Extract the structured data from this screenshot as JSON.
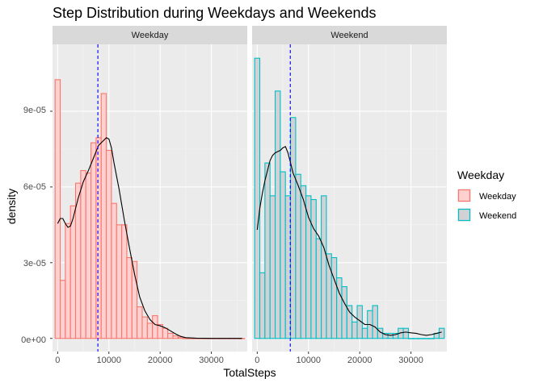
{
  "chart_data": {
    "type": "histogram",
    "title": "Step Distribution during Weekdays and Weekends",
    "xlabel": "TotalSteps",
    "ylabel": "density",
    "xlim": [
      -1000,
      37000
    ],
    "ylim": [
      -5.2e-06,
      0.0001165
    ],
    "x_ticks": [
      0,
      10000,
      20000,
      30000
    ],
    "x_tick_labels": [
      "0",
      "10000",
      "20000",
      "30000"
    ],
    "y_ticks": [
      0,
      3e-05,
      6e-05,
      9e-05
    ],
    "y_tick_labels": [
      "0e+00",
      "3e-05",
      "6e-05",
      "9e-05"
    ],
    "bin_width": 1000,
    "grid": true,
    "legend": {
      "title": "Weekday",
      "position": "right",
      "entries": [
        {
          "label": "Weekday",
          "color": "#F8766D"
        },
        {
          "label": "Weekend",
          "color": "#00BFC4"
        }
      ]
    },
    "panels": [
      {
        "strip": "Weekday",
        "color": "#F8766D",
        "fill": "#FFD0D0",
        "bin_centers": [
          0,
          1000,
          2000,
          3000,
          4000,
          5000,
          6000,
          7000,
          8000,
          9000,
          10000,
          11000,
          12000,
          13000,
          14000,
          15000,
          16000,
          17000,
          18000,
          19000,
          20000,
          21000,
          22000,
          23000,
          24000,
          25000,
          26000,
          27000,
          28000,
          29000,
          30000,
          31000,
          32000,
          33000,
          34000,
          35000,
          36000
        ],
        "density": [
          0.0001025,
          2.3e-05,
          4.55e-05,
          5.25e-05,
          6.15e-05,
          6.65e-05,
          6.55e-05,
          7.75e-05,
          7.95e-05,
          9.7e-05,
          7.45e-05,
          5.35e-05,
          4.5e-05,
          4.5e-05,
          3.2e-05,
          3.05e-05,
          1.25e-05,
          8.5e-06,
          6e-06,
          9e-06,
          5.5e-06,
          4e-06,
          2e-06,
          1e-06,
          5e-07,
          0,
          0,
          0,
          0,
          0,
          0,
          0,
          0,
          0,
          0,
          0,
          0
        ],
        "mean": 7850,
        "density_curve": {
          "x": [
            0,
            500,
            1000,
            1500,
            2000,
            2500,
            3000,
            4000,
            5000,
            6000,
            7000,
            8000,
            9000,
            9500,
            10000,
            10500,
            11000,
            12000,
            13000,
            14000,
            15000,
            16000,
            17000,
            18000,
            19000,
            20000,
            21000,
            22000,
            23000,
            24000,
            25000,
            27000,
            30000,
            33000,
            36000
          ],
          "y": [
            4.55e-05,
            4.75e-05,
            4.75e-05,
            4.55e-05,
            4.4e-05,
            4.45e-05,
            4.75e-05,
            5.55e-05,
            6.2e-05,
            6.65e-05,
            7.15e-05,
            7.65e-05,
            7.85e-05,
            7.95e-05,
            7.9e-05,
            7.55e-05,
            6.95e-05,
            5.9e-05,
            4.7e-05,
            3.6e-05,
            2.55e-05,
            1.65e-05,
            1.1e-05,
            7.5e-06,
            5.5e-06,
            5e-06,
            4.2e-06,
            3e-06,
            1.8e-06,
            8e-07,
            3e-07,
            1e-07,
            0,
            0,
            0
          ]
        }
      },
      {
        "strip": "Weekend",
        "color": "#00BFC4",
        "fill": "#D2D2D6",
        "bin_centers": [
          0,
          1000,
          2000,
          3000,
          4000,
          5000,
          6000,
          7000,
          8000,
          9000,
          10000,
          11000,
          12000,
          13000,
          14000,
          15000,
          16000,
          17000,
          18000,
          19000,
          20000,
          21000,
          22000,
          23000,
          24000,
          25000,
          26000,
          27000,
          28000,
          29000,
          30000,
          31000,
          32000,
          33000,
          34000,
          35000,
          36000
        ],
        "density": [
          0.000111,
          2.6e-05,
          6.95e-05,
          5.65e-05,
          9.8e-05,
          6.6e-05,
          5.65e-05,
          8.75e-05,
          6.5e-05,
          6.05e-05,
          5.65e-05,
          5.5e-05,
          3.95e-05,
          5.65e-05,
          3.35e-05,
          3.2e-05,
          2.4e-05,
          2.05e-05,
          1.3e-05,
          6.5e-06,
          1.3e-05,
          4e-06,
          1.1e-05,
          1.3e-05,
          4e-06,
          2e-06,
          2e-06,
          2e-06,
          4e-06,
          4e-06,
          0,
          0,
          0,
          0,
          0,
          2e-06,
          4e-06
        ],
        "mean": 6450,
        "density_curve": {
          "x": [
            0,
            500,
            1000,
            1500,
            2000,
            2500,
            3000,
            3500,
            4000,
            4500,
            5000,
            5500,
            6000,
            6500,
            7000,
            8000,
            9000,
            10000,
            11000,
            12000,
            13000,
            14000,
            15000,
            16000,
            17000,
            18000,
            19000,
            20000,
            21000,
            22000,
            23000,
            24000,
            25000,
            26000,
            27000,
            28000,
            29000,
            30000,
            31000,
            32000,
            33000,
            34000,
            35000,
            36000
          ],
          "y": [
            4.3e-05,
            5.15e-05,
            5.75e-05,
            6.25e-05,
            6.65e-05,
            7.05e-05,
            7.25e-05,
            7.35e-05,
            7.4e-05,
            7.45e-05,
            7.55e-05,
            7.6e-05,
            7.35e-05,
            6.95e-05,
            6.55e-05,
            6.05e-05,
            5.5e-05,
            4.8e-05,
            4.35e-05,
            4.05e-05,
            3.6e-05,
            2.9e-05,
            2.35e-05,
            1.8e-05,
            1.4e-05,
            1.05e-05,
            8.5e-06,
            7e-06,
            5.5e-06,
            5.5e-06,
            4.5e-06,
            2.5e-06,
            1.5e-06,
            1.2e-06,
            1.5e-06,
            2.2e-06,
            2.5e-06,
            2.2e-06,
            2e-06,
            1.5e-06,
            1.2e-06,
            1.5e-06,
            2e-06,
            2.5e-06
          ]
        }
      }
    ]
  }
}
